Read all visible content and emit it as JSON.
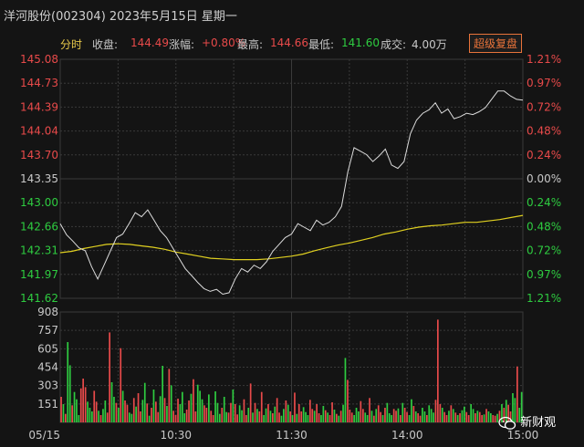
{
  "header": {
    "title": "洋河股份(002304) 2023年5月15日 星期一",
    "mode_label": "分时",
    "close_label": "收盘:",
    "close_value": "144.49",
    "change_label": "涨幅:",
    "change_value": "+0.80%",
    "high_label": "最高:",
    "high_value": "144.66",
    "low_label": "最低:",
    "low_value": "141.60",
    "volume_label": "成交:",
    "volume_value": "4.00万",
    "adjust_button": "超级复盘"
  },
  "watermark": {
    "text": "新财观",
    "icon": "wechat-icon"
  },
  "colors": {
    "up": "#e84a4a",
    "down": "#2ecc40",
    "price_line": "#dcdcdc",
    "avg_line": "#e0d020",
    "grid": "#3a3a3a"
  },
  "chart_data": {
    "type": "line",
    "price_ticks": [
      "145.08",
      "144.73",
      "144.39",
      "144.04",
      "143.70",
      "143.35",
      "143.00",
      "142.66",
      "142.31",
      "141.97",
      "141.62"
    ],
    "pct_ticks": [
      "1.21%",
      "0.97%",
      "0.72%",
      "0.48%",
      "0.24%",
      "0.00%",
      "0.24%",
      "0.48%",
      "0.72%",
      "0.97%",
      "1.21%"
    ],
    "volume_ticks": [
      "908",
      "757",
      "605",
      "454",
      "303",
      "151"
    ],
    "time_ticks": [
      "05/15",
      "10:30",
      "11:30",
      "14:00",
      "15:00"
    ],
    "price_range": [
      141.62,
      145.08
    ],
    "volume_range": [
      0,
      908
    ],
    "price": [
      142.7,
      142.54,
      142.45,
      142.35,
      142.31,
      142.08,
      141.9,
      142.1,
      142.3,
      142.5,
      142.55,
      142.7,
      142.86,
      142.8,
      142.9,
      142.75,
      142.6,
      142.5,
      142.35,
      142.2,
      142.05,
      141.95,
      141.85,
      141.76,
      141.72,
      141.75,
      141.68,
      141.7,
      141.9,
      142.05,
      142.0,
      142.1,
      142.05,
      142.15,
      142.3,
      142.4,
      142.5,
      142.55,
      142.7,
      142.65,
      142.6,
      142.75,
      142.68,
      142.72,
      142.8,
      142.95,
      143.45,
      143.8,
      143.75,
      143.7,
      143.6,
      143.68,
      143.78,
      143.55,
      143.5,
      143.6,
      144.0,
      144.2,
      144.3,
      144.35,
      144.45,
      144.3,
      144.36,
      144.22,
      144.25,
      144.3,
      144.28,
      144.32,
      144.38,
      144.5,
      144.62,
      144.62,
      144.55,
      144.5,
      144.49
    ],
    "average": [
      142.28,
      142.3,
      142.34,
      142.37,
      142.4,
      142.41,
      142.4,
      142.38,
      142.36,
      142.33,
      142.29,
      142.26,
      142.23,
      142.2,
      142.19,
      142.18,
      142.18,
      142.18,
      142.19,
      142.21,
      142.23,
      142.26,
      142.31,
      142.35,
      142.39,
      142.42,
      142.46,
      142.5,
      142.55,
      142.58,
      142.62,
      142.65,
      142.67,
      142.68,
      142.7,
      142.72,
      142.72,
      142.74,
      142.76,
      142.79,
      142.82
    ],
    "volume": [
      210,
      150,
      70,
      660,
      470,
      140,
      250,
      190,
      60,
      280,
      360,
      290,
      170,
      120,
      90,
      260,
      170,
      95,
      60,
      110,
      180,
      80,
      740,
      330,
      210,
      160,
      120,
      610,
      260,
      180,
      145,
      80,
      70,
      200,
      130,
      240,
      90,
      185,
      325,
      155,
      55,
      120,
      270,
      170,
      85,
      215,
      465,
      200,
      135,
      440,
      305,
      95,
      60,
      195,
      150,
      250,
      75,
      105,
      180,
      235,
      355,
      90,
      310,
      260,
      190,
      140,
      120,
      230,
      95,
      60,
      255,
      160,
      70,
      120,
      210,
      85,
      80,
      160,
      270,
      150,
      65,
      140,
      100,
      190,
      60,
      120,
      320,
      80,
      160,
      110,
      90,
      250,
      60,
      115,
      150,
      95,
      75,
      130,
      200,
      80,
      55,
      110,
      180,
      145,
      90,
      60,
      245,
      70,
      150,
      90,
      125,
      85,
      60,
      185,
      110,
      95,
      150,
      75,
      60,
      135,
      100,
      80,
      60,
      165,
      105,
      70,
      55,
      95,
      145,
      530,
      350,
      105,
      80,
      60,
      120,
      90,
      175,
      110,
      80,
      60,
      200,
      95,
      55,
      110,
      140,
      85,
      60,
      120,
      160,
      75,
      60,
      110,
      95,
      115,
      60,
      160,
      120,
      85,
      60,
      190,
      135,
      90,
      75,
      55,
      120,
      90,
      60,
      140,
      110,
      80,
      185,
      845,
      150,
      120,
      85,
      60,
      95,
      140,
      110,
      80,
      60,
      75,
      100,
      130,
      85,
      60,
      150,
      110,
      75,
      95,
      85,
      60,
      65,
      110,
      90,
      75,
      60,
      55,
      70,
      95,
      150,
      120,
      185,
      145,
      90,
      240,
      200,
      460,
      120,
      250
    ],
    "volume_colors": "rgrggrgggrrrgggrrgrggrrggrgrgrrggrgrrggrgrgrrggrgrgrrrgggrrgrrgggrrgrrgggrggrrgrrggrrgrgrgrrggrgrgrrggrgrgrgrrgggrrgrrggrgrrgrgrggrrrgggrrggrgrgrrgrgggrrgrgrrggrgrrggrgggrrrgrrgrgrgrggrrggrgrrgrggrrgrgrgrrggrggr"
  }
}
